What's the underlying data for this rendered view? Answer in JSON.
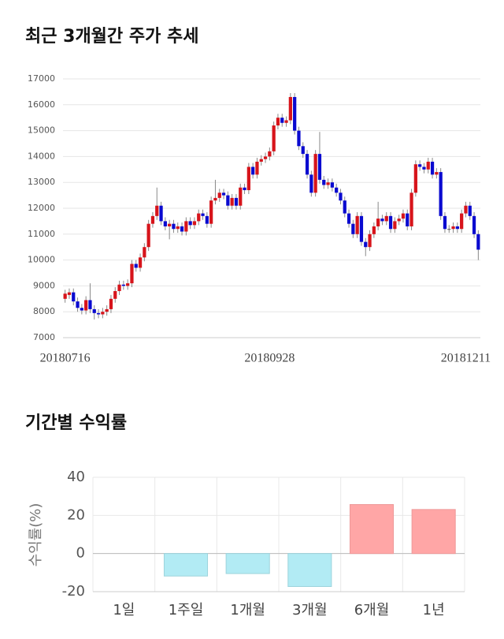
{
  "chart_data": [
    {
      "type": "candlestick",
      "title": "최근 3개월간 주가 추세",
      "categories": [
        "20180716",
        null,
        null,
        null,
        null,
        null,
        null,
        null,
        null,
        null,
        null,
        null,
        null,
        null,
        null,
        null,
        null,
        null,
        null,
        null,
        null,
        null,
        null,
        null,
        null,
        null,
        null,
        null,
        null,
        null,
        null,
        null,
        null,
        null,
        null,
        null,
        null,
        null,
        null,
        null,
        null,
        null,
        null,
        null,
        null,
        null,
        null,
        null,
        null,
        "20180928",
        null,
        null,
        null,
        null,
        null,
        null,
        null,
        null,
        null,
        null,
        null,
        null,
        null,
        null,
        null,
        null,
        null,
        null,
        null,
        null,
        null,
        null,
        null,
        null,
        null,
        null,
        null,
        null,
        null,
        null,
        null,
        null,
        null,
        null,
        null,
        null,
        null,
        null,
        null,
        null,
        null,
        null,
        null,
        null,
        null,
        null,
        "20181211",
        null,
        null,
        null
      ],
      "open": [
        8500,
        8650,
        8750,
        8400,
        8150,
        8050,
        8450,
        8100,
        7950,
        7900,
        8000,
        8100,
        8500,
        8800,
        9050,
        9000,
        9100,
        9850,
        9700,
        10100,
        10500,
        11400,
        11700,
        12100,
        11500,
        11300,
        11400,
        11200,
        11300,
        11100,
        11500,
        11350,
        11500,
        11800,
        11700,
        11400,
        12300,
        12400,
        12600,
        12500,
        12100,
        12400,
        12100,
        12800,
        12700,
        13600,
        13300,
        13800,
        13900,
        14000,
        14200,
        15200,
        15500,
        15300,
        15400,
        16300,
        15000,
        14400,
        14100,
        13300,
        12600,
        14100,
        13100,
        12900,
        13000,
        12800,
        12600,
        12300,
        11800,
        11400,
        11000,
        11700,
        10700,
        10500,
        11000,
        11300,
        11600,
        11500,
        11700,
        11200,
        11500,
        11600,
        11800,
        11300,
        12600,
        13700,
        13600,
        13500,
        13800,
        13300,
        13400,
        11700,
        11200,
        11200,
        11300,
        11200,
        11800,
        12100,
        11700,
        11000
      ],
      "high": [
        8850,
        8900,
        8900,
        8550,
        8300,
        8600,
        9100,
        8250,
        8100,
        8150,
        8250,
        8650,
        8950,
        9200,
        9200,
        9250,
        10000,
        10000,
        10250,
        10650,
        11550,
        11850,
        12800,
        12250,
        11650,
        11550,
        11550,
        11450,
        11450,
        11650,
        11650,
        11650,
        11950,
        11950,
        11850,
        12450,
        13100,
        12750,
        12750,
        12650,
        12550,
        12550,
        12950,
        12950,
        13750,
        13750,
        13950,
        14050,
        14150,
        14350,
        15350,
        15650,
        15650,
        15550,
        16450,
        16450,
        15150,
        14550,
        14250,
        13450,
        14250,
        14950,
        13250,
        13150,
        13150,
        12950,
        12750,
        12450,
        11950,
        11550,
        11850,
        11850,
        10850,
        11150,
        11450,
        12250,
        11750,
        11850,
        11850,
        11650,
        11750,
        11950,
        11950,
        12750,
        13850,
        13850,
        13750,
        13950,
        13950,
        13550,
        13550,
        11850,
        11350,
        11450,
        11450,
        11950,
        12250,
        12250,
        11850,
        11150
      ],
      "low": [
        8350,
        8500,
        8250,
        8000,
        7900,
        7900,
        7950,
        7700,
        7750,
        7750,
        7850,
        7950,
        8350,
        8650,
        8850,
        8850,
        8950,
        9550,
        9550,
        9950,
        10350,
        11250,
        11550,
        11350,
        11150,
        10800,
        11050,
        11050,
        10950,
        10950,
        11200,
        11200,
        11350,
        11550,
        11250,
        11250,
        12150,
        12250,
        12350,
        11950,
        11950,
        11950,
        11950,
        12550,
        12550,
        13150,
        13150,
        13650,
        13750,
        13850,
        14050,
        15050,
        15150,
        15150,
        15250,
        14850,
        14250,
        13950,
        13150,
        12450,
        12450,
        12950,
        12750,
        12750,
        12650,
        12450,
        12150,
        11650,
        11250,
        10850,
        10850,
        10550,
        10150,
        10350,
        10850,
        11150,
        11350,
        11350,
        11050,
        11050,
        11350,
        11450,
        11150,
        11150,
        12450,
        13450,
        13350,
        13350,
        13150,
        13150,
        11550,
        11050,
        11050,
        11050,
        11050,
        11050,
        11650,
        11550,
        10850,
        10000
      ],
      "close": [
        8700,
        8750,
        8400,
        8150,
        8050,
        8450,
        8100,
        7950,
        7900,
        8000,
        8100,
        8500,
        8800,
        9050,
        9000,
        9100,
        9850,
        9700,
        10100,
        10500,
        11400,
        11700,
        12100,
        11500,
        11300,
        11400,
        11200,
        11300,
        11100,
        11500,
        11350,
        11500,
        11800,
        11700,
        11400,
        12300,
        12400,
        12600,
        12500,
        12100,
        12400,
        12100,
        12800,
        12700,
        13600,
        13300,
        13800,
        13900,
        14000,
        14200,
        15200,
        15500,
        15300,
        15400,
        16300,
        15000,
        14400,
        14100,
        13300,
        12600,
        14100,
        13100,
        12900,
        13000,
        12800,
        12600,
        12300,
        11800,
        11400,
        11000,
        11700,
        10700,
        10500,
        11000,
        11300,
        11600,
        11500,
        11700,
        11200,
        11500,
        11600,
        11800,
        11300,
        12600,
        13700,
        13600,
        13500,
        13800,
        13300,
        13400,
        11700,
        11200,
        11200,
        11300,
        11200,
        11800,
        12100,
        11700,
        11000,
        10400
      ],
      "up_color": "#d7141b",
      "down_color": "#0a0ad0",
      "ylim": [
        7000,
        17000
      ],
      "yticks": [
        7000,
        8000,
        9000,
        10000,
        11000,
        12000,
        13000,
        14000,
        15000,
        16000,
        17000
      ],
      "grid": true
    },
    {
      "type": "bar",
      "title": "기간별 수익률",
      "ylabel": "수익률(%)",
      "categories": [
        "1일",
        "1주일",
        "1개월",
        "3개월",
        "6개월",
        "1년"
      ],
      "values": [
        0,
        -11.8,
        -10.5,
        -17.3,
        25.7,
        23.1
      ],
      "positive_color": "#ffa6a6",
      "negative_color": "#b2ebf4",
      "ylim": [
        -20,
        40
      ],
      "yticks": [
        -20,
        0,
        20,
        40
      ],
      "grid": true
    }
  ]
}
